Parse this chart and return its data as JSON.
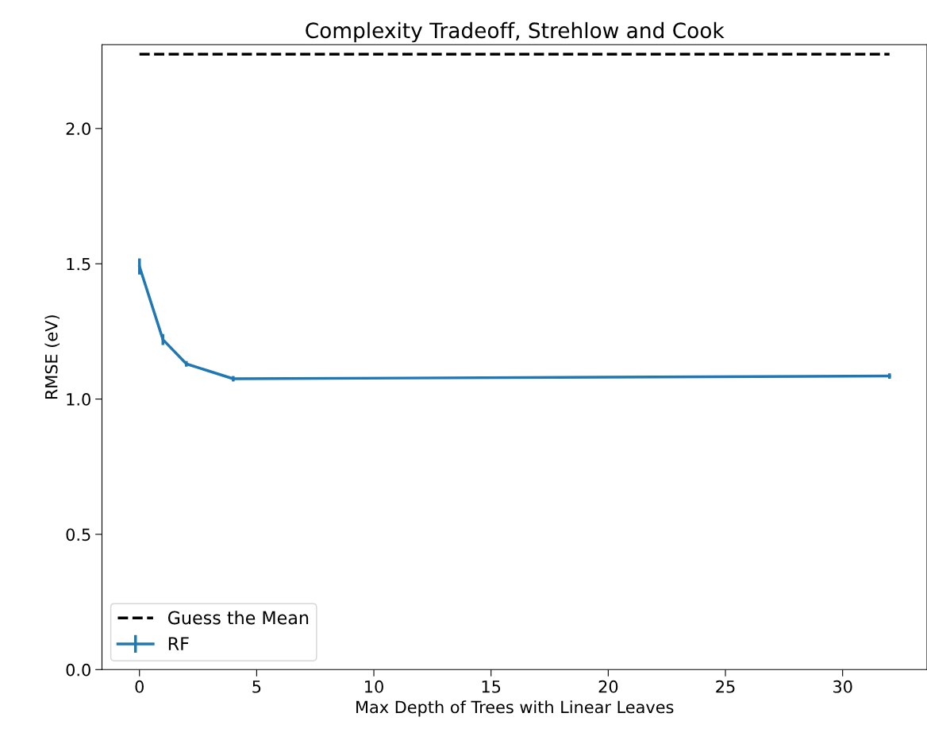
{
  "chart_data": {
    "type": "line",
    "title": "Complexity Tradeoff, Strehlow and Cook",
    "xlabel": "Max Depth of Trees with Linear Leaves",
    "ylabel": "RMSE (eV)",
    "series": [
      {
        "name": "Guess the Mean",
        "color": "#000000",
        "line_style": "dashed",
        "x": [
          0,
          32
        ],
        "values": [
          2.275,
          2.275
        ]
      },
      {
        "name": "RF",
        "color": "#1f77b4",
        "line_style": "solid",
        "x": [
          0,
          1,
          2,
          4,
          32
        ],
        "values": [
          1.49,
          1.22,
          1.13,
          1.075,
          1.085
        ],
        "errors": [
          0.03,
          0.02,
          0.01,
          0.01,
          0.01
        ]
      }
    ],
    "xlim": [
      -1.6,
      33.6
    ],
    "xticks": [
      0,
      5,
      10,
      15,
      20,
      25,
      30
    ],
    "ylim": [
      0,
      2.31
    ],
    "yticks": [
      {
        "value": 0,
        "label": "0.0"
      },
      {
        "value": 0.5,
        "label": "0.5"
      },
      {
        "value": 1,
        "label": "1.0"
      },
      {
        "value": 1.5,
        "label": "1.5"
      },
      {
        "value": 2,
        "label": "2.0"
      }
    ],
    "grid": false,
    "legend": "bottom left"
  }
}
